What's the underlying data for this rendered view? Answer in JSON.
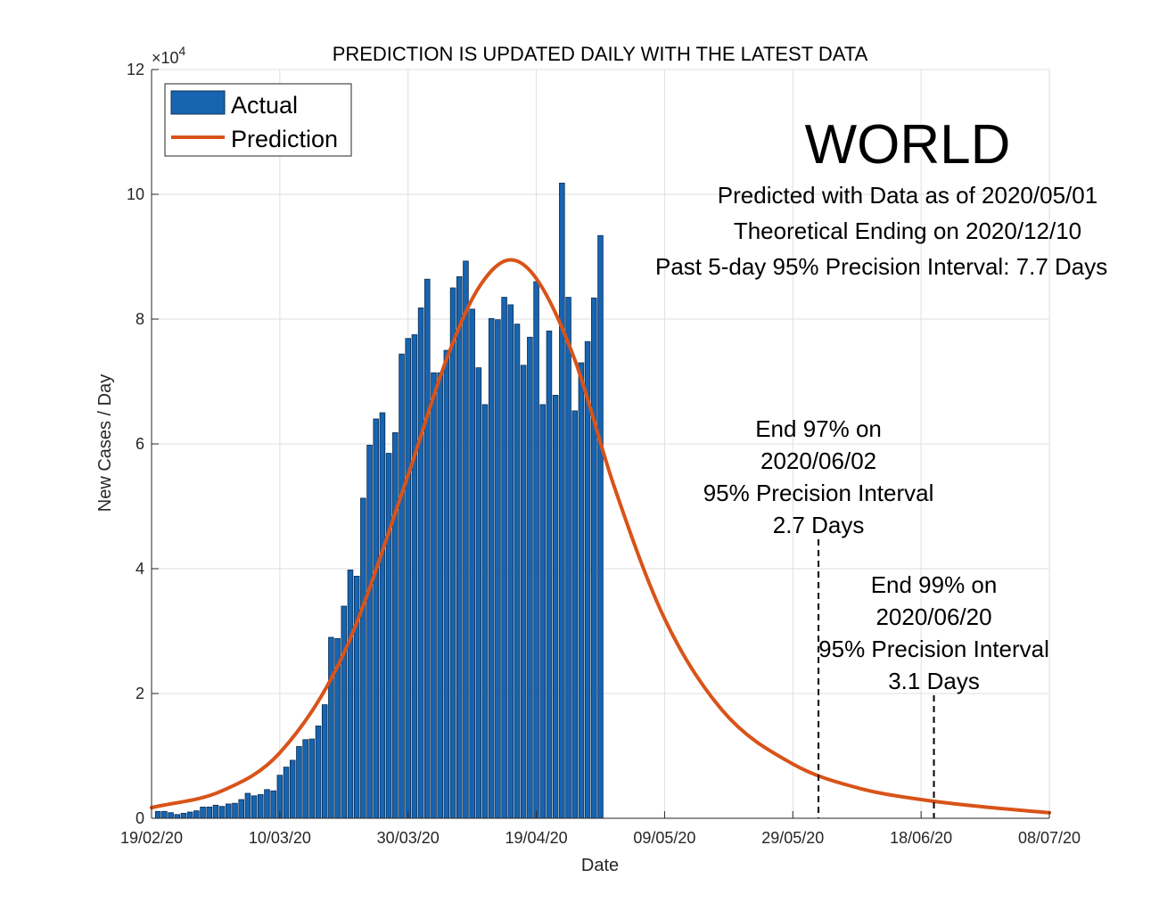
{
  "chart_data": {
    "type": "bar",
    "title": "PREDICTION IS UPDATED DAILY WITH THE LATEST DATA",
    "xlabel": "Date",
    "ylabel": "New Cases / Day",
    "y_exponent_label": "×10",
    "y_exponent": "4",
    "x_ticks": [
      "19/02/20",
      "10/03/20",
      "30/03/20",
      "19/04/20",
      "09/05/20",
      "29/05/20",
      "18/06/20",
      "08/07/20"
    ],
    "y_ticks": [
      "0",
      "2",
      "4",
      "6",
      "8",
      "10",
      "12"
    ],
    "xlim": [
      "2020-02-19",
      "2020-07-08"
    ],
    "ylim": [
      0,
      120000
    ],
    "grid": true,
    "legend_position": "top-left",
    "series": [
      {
        "name": "Actual",
        "kind": "bar",
        "color": "#1764b0",
        "start_date": "2020-02-20",
        "values": [
          1100,
          1100,
          900,
          600,
          800,
          1000,
          1200,
          1800,
          1800,
          2100,
          1900,
          2300,
          2400,
          3000,
          4000,
          3600,
          3800,
          4600,
          4400,
          6900,
          8200,
          9300,
          11500,
          12600,
          12700,
          14800,
          18200,
          29000,
          28800,
          34000,
          39800,
          38800,
          51300,
          59800,
          64000,
          65000,
          58500,
          61800,
          74400,
          76900,
          77500,
          81800,
          86400,
          71400,
          71400,
          75000,
          85000,
          86800,
          89300,
          81600,
          72200,
          66300,
          80100,
          79900,
          83500,
          82300,
          79200,
          72600,
          77100,
          86000,
          66300,
          78100,
          67800,
          101800,
          83500,
          65300,
          73000,
          76400,
          83400,
          93400
        ]
      },
      {
        "name": "Prediction",
        "kind": "line",
        "color": "#d95319",
        "x": [
          "2020-02-19",
          "2020-03-01",
          "2020-03-10",
          "2020-03-20",
          "2020-03-30",
          "2020-04-05",
          "2020-04-10",
          "2020-04-15",
          "2020-04-19",
          "2020-04-25",
          "2020-05-01",
          "2020-05-09",
          "2020-05-18",
          "2020-05-29",
          "2020-06-08",
          "2020-06-18",
          "2020-06-28",
          "2020-07-08"
        ],
        "values": [
          1700,
          4400,
          10500,
          26500,
          55000,
          73600,
          85000,
          89500,
          86500,
          73500,
          53600,
          32000,
          17300,
          8700,
          4900,
          3000,
          1800,
          900
        ]
      }
    ],
    "markers": [
      {
        "date": "2020-06-02",
        "lines": [
          "End 97% on",
          "2020/06/02",
          "95% Precision Interval",
          "2.7 Days"
        ]
      },
      {
        "date": "2020-06-20",
        "lines": [
          "End 99% on",
          "2020/06/20",
          "95% Precision Interval",
          "3.1 Days"
        ]
      }
    ]
  },
  "annotation": {
    "region": "WORLD",
    "lines": [
      "Predicted with Data as of 2020/05/01",
      "Theoretical Ending on 2020/12/10",
      "Past 5-day 95% Precision Interval: 7.7 Days"
    ]
  }
}
